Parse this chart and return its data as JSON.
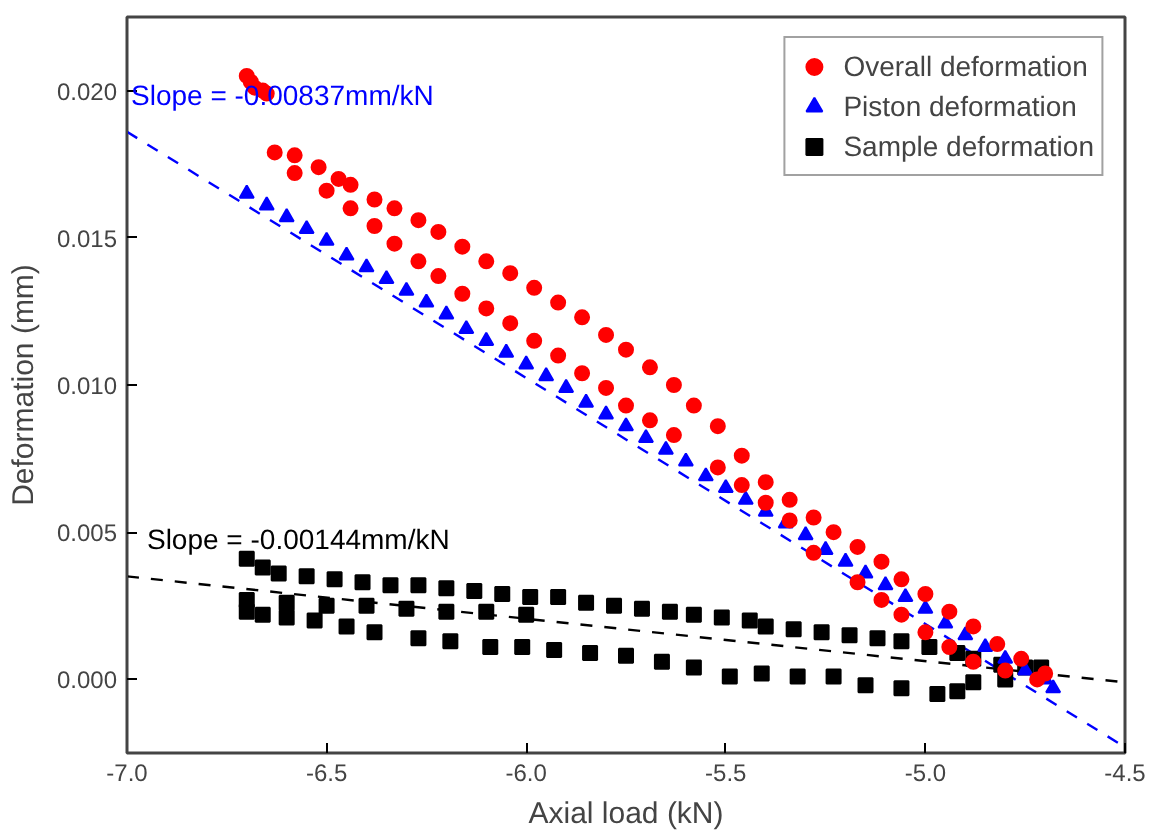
{
  "chart_data": {
    "type": "scatter",
    "xlabel": "Axial load (kN)",
    "ylabel": "Deformation (mm)",
    "xlim": [
      -7.0,
      -4.5
    ],
    "ylim": [
      -0.0025,
      0.0225
    ],
    "xticks": [
      {
        "value": -7.0,
        "label": "-7.0"
      },
      {
        "value": -6.5,
        "label": "-6.5"
      },
      {
        "value": -6.0,
        "label": "-6.0"
      },
      {
        "value": -5.5,
        "label": "-5.5"
      },
      {
        "value": -5.0,
        "label": "-5.0"
      },
      {
        "value": -4.5,
        "label": "-4.5"
      }
    ],
    "yticks": [
      {
        "value": 0,
        "label": "0.000"
      },
      {
        "value": 0.005,
        "label": "0.005"
      },
      {
        "value": 0.01,
        "label": "0.010"
      },
      {
        "value": 0.015,
        "label": "0.015"
      },
      {
        "value": 0.02,
        "label": "0.020"
      }
    ],
    "grid": false,
    "legend": "top right",
    "series": [
      {
        "name": "Overall deformation",
        "color": "#ff0000",
        "marker": "circle",
        "x": [
          -6.7,
          -6.69,
          -6.68,
          -6.66,
          -6.65,
          -6.63,
          -6.58,
          -6.52,
          -6.47,
          -6.44,
          -6.38,
          -6.33,
          -6.27,
          -6.22,
          -6.16,
          -6.1,
          -6.04,
          -5.98,
          -5.92,
          -5.86,
          -5.8,
          -5.75,
          -5.69,
          -5.63,
          -5.58,
          -5.52,
          -5.46,
          -5.4,
          -5.34,
          -5.28,
          -5.23,
          -5.17,
          -5.11,
          -5.06,
          -5.0,
          -4.94,
          -4.88,
          -4.82,
          -4.76,
          -4.7,
          -6.58,
          -6.5,
          -6.44,
          -6.38,
          -6.33,
          -6.27,
          -6.22,
          -6.16,
          -6.1,
          -6.04,
          -5.98,
          -5.92,
          -5.86,
          -5.8,
          -5.75,
          -5.69,
          -5.63,
          -5.52,
          -5.46,
          -5.4,
          -5.34,
          -5.28,
          -5.17,
          -5.11,
          -5.06,
          -5.0,
          -4.94,
          -4.88,
          -4.8,
          -4.72
        ],
        "values": [
          0.0205,
          0.0203,
          0.0201,
          0.02,
          0.0199,
          0.0179,
          0.0178,
          0.0174,
          0.017,
          0.0168,
          0.0163,
          0.016,
          0.0156,
          0.0152,
          0.0147,
          0.0142,
          0.0138,
          0.0133,
          0.0128,
          0.0123,
          0.0117,
          0.0112,
          0.0106,
          0.01,
          0.0093,
          0.0086,
          0.0076,
          0.0067,
          0.0061,
          0.0055,
          0.005,
          0.0045,
          0.004,
          0.0034,
          0.0029,
          0.0023,
          0.0018,
          0.0012,
          0.0007,
          0.0002,
          0.0172,
          0.0166,
          0.016,
          0.0154,
          0.0148,
          0.0142,
          0.0137,
          0.0131,
          0.0126,
          0.0121,
          0.0115,
          0.011,
          0.0104,
          0.0099,
          0.0093,
          0.0088,
          0.0083,
          0.0072,
          0.0066,
          0.006,
          0.0054,
          0.0043,
          0.0033,
          0.0027,
          0.0022,
          0.0016,
          0.0011,
          0.0006,
          0.0003,
          0.0
        ]
      },
      {
        "name": "Piston deformation",
        "color": "#0000ff",
        "marker": "triangle",
        "x": [
          -6.7,
          -6.65,
          -6.6,
          -6.55,
          -6.5,
          -6.45,
          -6.4,
          -6.35,
          -6.3,
          -6.25,
          -6.2,
          -6.15,
          -6.1,
          -6.05,
          -6.0,
          -5.95,
          -5.9,
          -5.85,
          -5.8,
          -5.75,
          -5.7,
          -5.65,
          -5.6,
          -5.55,
          -5.5,
          -5.45,
          -5.4,
          -5.35,
          -5.3,
          -5.25,
          -5.2,
          -5.15,
          -5.1,
          -5.05,
          -5.0,
          -4.95,
          -4.9,
          -4.85,
          -4.8,
          -4.75,
          -4.7,
          -4.68
        ],
        "values": [
          0.0165,
          0.0161,
          0.0157,
          0.0153,
          0.0149,
          0.0144,
          0.014,
          0.0136,
          0.0132,
          0.0128,
          0.0124,
          0.0119,
          0.0115,
          0.0111,
          0.0107,
          0.0103,
          0.0099,
          0.0094,
          0.009,
          0.0086,
          0.0082,
          0.0078,
          0.0074,
          0.0069,
          0.0065,
          0.0061,
          0.0057,
          0.0053,
          0.0049,
          0.0044,
          0.004,
          0.0036,
          0.0032,
          0.0028,
          0.0024,
          0.0019,
          0.0015,
          0.0011,
          0.0007,
          0.0003,
          0.0,
          -0.0003
        ]
      },
      {
        "name": "Sample deformation",
        "color": "#000000",
        "marker": "square",
        "x": [
          -6.7,
          -6.66,
          -6.62,
          -6.55,
          -6.48,
          -6.41,
          -6.34,
          -6.27,
          -6.2,
          -6.13,
          -6.06,
          -5.99,
          -5.92,
          -5.85,
          -5.78,
          -5.71,
          -5.64,
          -5.58,
          -5.51,
          -5.44,
          -5.4,
          -5.33,
          -5.26,
          -5.19,
          -5.12,
          -5.06,
          -4.99,
          -4.92,
          -4.88,
          -4.81,
          -4.75,
          -4.71,
          -6.7,
          -6.66,
          -6.6,
          -6.53,
          -6.45,
          -6.38,
          -6.27,
          -6.19,
          -6.09,
          -6.01,
          -5.93,
          -5.84,
          -5.75,
          -5.66,
          -5.58,
          -5.49,
          -5.41,
          -5.32,
          -5.23,
          -5.15,
          -5.06,
          -4.97,
          -4.92,
          -4.88,
          -4.8,
          -6.7,
          -6.6,
          -6.5,
          -6.4,
          -6.3,
          -6.2,
          -6.1,
          -6.0
        ],
        "values": [
          0.0041,
          0.0038,
          0.0036,
          0.0035,
          0.0034,
          0.0033,
          0.0032,
          0.0032,
          0.0031,
          0.003,
          0.0029,
          0.0028,
          0.0028,
          0.0026,
          0.0025,
          0.0024,
          0.0023,
          0.0022,
          0.0021,
          0.002,
          0.0018,
          0.0017,
          0.0016,
          0.0015,
          0.0014,
          0.0013,
          0.0011,
          0.0009,
          0.0007,
          0.0005,
          0.0004,
          0.0004,
          0.0023,
          0.0022,
          0.0021,
          0.002,
          0.0018,
          0.0016,
          0.0014,
          0.0013,
          0.0011,
          0.0011,
          0.001,
          0.0009,
          0.0008,
          0.0006,
          0.0004,
          0.0001,
          0.0002,
          0.0001,
          0.0001,
          -0.0002,
          -0.0003,
          -0.0005,
          -0.0004,
          -0.0001,
          0.0,
          0.0027,
          0.0026,
          0.0025,
          0.0025,
          0.0024,
          0.0023,
          0.0023,
          0.0022
        ]
      },
      {
        "type": "line",
        "color": "#0000ff",
        "line_style": "dashed",
        "x": [
          -7.0,
          -4.5
        ],
        "values": [
          0.0186,
          -0.0023
        ]
      },
      {
        "type": "line",
        "color": "#000000",
        "line_style": "dashed",
        "x": [
          -7.0,
          -4.5
        ],
        "values": [
          0.0035,
          -0.0001
        ]
      }
    ],
    "annotations": [
      {
        "text": "Slope = -0.00837mm/kN",
        "x": -6.99,
        "y": 0.0185
      },
      {
        "text": "Slope = -0.00144mm/kN",
        "x": -6.95,
        "y": 0.0034
      }
    ]
  }
}
